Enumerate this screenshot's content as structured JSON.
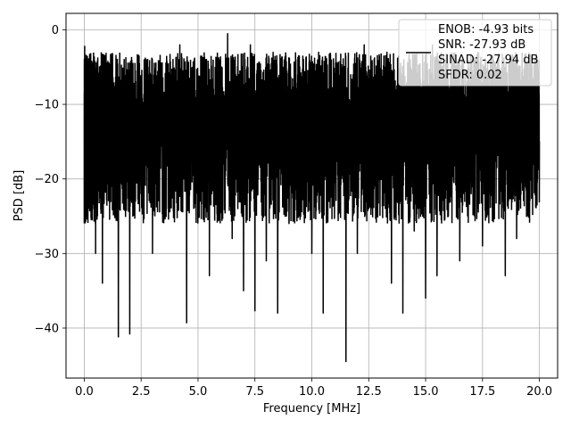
{
  "chart_data": {
    "type": "line",
    "title": "",
    "xlabel": "Frequency [MHz]",
    "ylabel": "PSD [dB]",
    "xlim": [
      -0.8,
      20.8
    ],
    "ylim": [
      -46.7,
      2.2
    ],
    "xticks": [
      0.0,
      2.5,
      5.0,
      7.5,
      10.0,
      12.5,
      15.0,
      17.5,
      20.0
    ],
    "xtick_labels": [
      "0.0",
      "2.5",
      "5.0",
      "7.5",
      "10.0",
      "12.5",
      "15.0",
      "17.5",
      "20.0"
    ],
    "yticks": [
      0,
      -10,
      -20,
      -30,
      -40
    ],
    "ytick_labels": [
      "0",
      "−10",
      "−20",
      "−30",
      "−40"
    ],
    "grid": true,
    "legend_position": "top-right",
    "legend_lines": [
      "ENOB: -4.93 bits",
      "SNR: -27.93 dB",
      "SINAD: -27.94 dB",
      "SFDR: 0.02"
    ],
    "line_color": "#000000",
    "series": [
      {
        "x": [
          0.0,
          0.02,
          0.05,
          0.1,
          0.2,
          0.3,
          0.4,
          0.5,
          0.6,
          0.8,
          1.0,
          1.2,
          1.5,
          1.8,
          2.0,
          2.2,
          2.5,
          2.8,
          3.0,
          3.2,
          3.5,
          3.8,
          4.0,
          4.2,
          4.5,
          4.7,
          5.0,
          5.3,
          5.5,
          5.8,
          6.0,
          6.3,
          6.5,
          6.8,
          7.0,
          7.3,
          7.5,
          7.8,
          8.0,
          8.3,
          8.5,
          8.8,
          9.0,
          9.3,
          9.5,
          9.8,
          10.0,
          10.3,
          10.5,
          10.8,
          11.0,
          11.3,
          11.5,
          11.8,
          12.0,
          12.3,
          12.5,
          12.8,
          13.0,
          13.3,
          13.5,
          13.8,
          14.0,
          14.3,
          14.5,
          14.8,
          15.0,
          15.3,
          15.5,
          15.8,
          16.0,
          16.3,
          16.5,
          16.8,
          17.0,
          17.3,
          17.5,
          17.8,
          18.0,
          18.3,
          18.5,
          18.8,
          19.0,
          19.3,
          19.5,
          19.8,
          20.0
        ],
        "y": [
          -12.0,
          -2.2,
          -8.0,
          -15.0,
          -6.0,
          -25.0,
          -11.0,
          -30.0,
          -7.0,
          -34.0,
          -12.0,
          -20.0,
          -41.2,
          -15.0,
          -40.8,
          -8.0,
          -22.0,
          -5.0,
          -30.0,
          -10.0,
          -24.0,
          -6.0,
          -19.0,
          -2.0,
          -39.3,
          -8.0,
          -22.0,
          -4.0,
          -33.0,
          -9.0,
          -20.0,
          -0.5,
          -28.0,
          -6.0,
          -35.0,
          -2.0,
          -37.7,
          -10.0,
          -31.0,
          -3.0,
          -38.0,
          -11.0,
          -26.0,
          -4.0,
          -23.0,
          -8.0,
          -30.0,
          -3.0,
          -38.0,
          -12.0,
          -21.0,
          -5.0,
          -44.5,
          -9.0,
          -30.0,
          -2.0,
          -24.0,
          -10.0,
          -19.0,
          -3.0,
          -34.0,
          -7.0,
          -38.0,
          -4.0,
          -27.0,
          -11.0,
          -36.0,
          -2.0,
          -33.0,
          -8.0,
          -25.0,
          -5.0,
          -31.0,
          -9.0,
          -22.0,
          -3.0,
          -29.0,
          -12.0,
          -24.0,
          -6.0,
          -33.0,
          -4.0,
          -28.0,
          -10.0,
          -20.0,
          -7.0,
          -15.0
        ]
      }
    ]
  }
}
